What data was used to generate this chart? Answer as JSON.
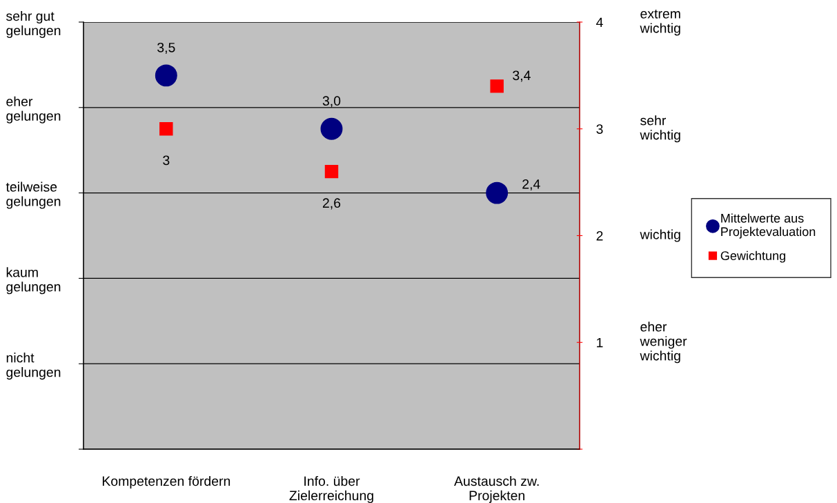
{
  "chart_data": {
    "type": "scatter",
    "categories": [
      "Kompetenzen fördern",
      "Info. über\nZielerreichung",
      "Austausch zw.\nProjekten"
    ],
    "y_categories": [
      "sehr gut\ngelungen",
      "eher\ngelungen",
      "teilweise\ngelungen",
      "kaum\ngelungen",
      "nicht\ngelungen",
      null
    ],
    "y2lim": [
      0,
      4
    ],
    "y2ticks": [
      {
        "value": 0,
        "label": null
      },
      1,
      2,
      3,
      4
    ],
    "annotations": [
      "extrem\nwichtig",
      "sehr\nwichtig",
      "wichtig",
      "eher\nweniger\nwichtig"
    ],
    "series": [
      {
        "name": "Mittelwerte aus\nProjektevaluation",
        "color": "#000080",
        "marker": "circle",
        "axis": "y2",
        "values": [
          3.5,
          3.0,
          2.4
        ],
        "value_labels": [
          "3,5",
          "3,0",
          "2,4"
        ]
      },
      {
        "name": "Gewichtung",
        "color": "#ff0000",
        "marker": "square",
        "axis": "y2",
        "values": [
          3,
          2.6,
          3.4
        ],
        "value_labels": [
          "3",
          "2,6",
          "3,4"
        ]
      }
    ],
    "grid": "y",
    "legend": "right"
  }
}
